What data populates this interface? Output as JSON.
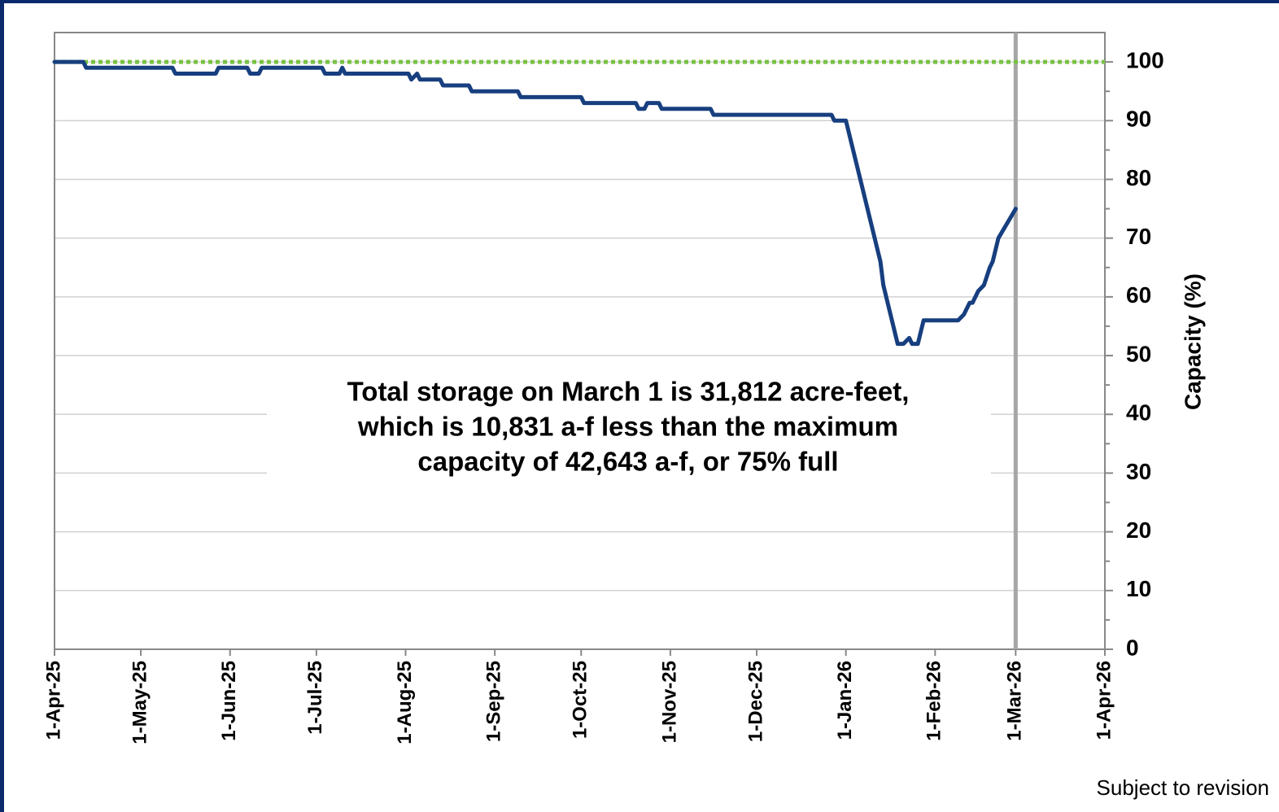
{
  "chart_data": {
    "type": "line",
    "y_label": "Capacity (%)",
    "annotation": [
      "Total storage on March 1 is 31,812 acre-feet,",
      "which is 10,831 a-f less than the maximum",
      "capacity of 42,643 a-f, or 75% full"
    ],
    "note": "Subject to revision",
    "xlim": [
      "2025-04-01",
      "2026-04-01"
    ],
    "xticks": [
      {
        "value": "2025-04-01",
        "label": "1-Apr-25"
      },
      {
        "value": "2025-05-01",
        "label": "1-May-25"
      },
      {
        "value": "2025-06-01",
        "label": "1-Jun-25"
      },
      {
        "value": "2025-07-01",
        "label": "1-Jul-25"
      },
      {
        "value": "2025-08-01",
        "label": "1-Aug-25"
      },
      {
        "value": "2025-09-01",
        "label": "1-Sep-25"
      },
      {
        "value": "2025-10-01",
        "label": "1-Oct-25"
      },
      {
        "value": "2025-11-01",
        "label": "1-Nov-25"
      },
      {
        "value": "2025-12-01",
        "label": "1-Dec-25"
      },
      {
        "value": "2026-01-01",
        "label": "1-Jan-26"
      },
      {
        "value": "2026-02-01",
        "label": "1-Feb-26"
      },
      {
        "value": "2026-03-01",
        "label": "1-Mar-26"
      },
      {
        "value": "2026-04-01",
        "label": "1-Apr-26"
      }
    ],
    "ylim": [
      0,
      105
    ],
    "yticks": [
      0,
      10,
      20,
      30,
      40,
      50,
      60,
      70,
      80,
      90,
      100
    ],
    "yminorticks": [
      5,
      15,
      25,
      35,
      45,
      55,
      65,
      75,
      85,
      95
    ],
    "y_axis_side": "right",
    "grid": true,
    "reference_line": {
      "value": 100,
      "color": "#7ac143"
    },
    "marker_date": "2026-03-01",
    "x": [
      "2025-04-01",
      "2025-04-11",
      "2025-04-12",
      "2025-05-12",
      "2025-05-13",
      "2025-05-27",
      "2025-05-28",
      "2025-06-07",
      "2025-06-08",
      "2025-06-11",
      "2025-06-12",
      "2025-07-03",
      "2025-07-04",
      "2025-07-09",
      "2025-07-10",
      "2025-07-11",
      "2025-08-02",
      "2025-08-03",
      "2025-08-05",
      "2025-08-06",
      "2025-08-13",
      "2025-08-14",
      "2025-08-23",
      "2025-08-24",
      "2025-09-09",
      "2025-09-10",
      "2025-10-01",
      "2025-10-02",
      "2025-10-20",
      "2025-10-21",
      "2025-10-23",
      "2025-10-24",
      "2025-10-28",
      "2025-10-29",
      "2025-11-15",
      "2025-11-16",
      "2025-12-27",
      "2025-12-28",
      "2026-01-01",
      "2026-01-06",
      "2026-01-13",
      "2026-01-14",
      "2026-01-19",
      "2026-01-21",
      "2026-01-23",
      "2026-01-24",
      "2026-01-26",
      "2026-01-28",
      "2026-02-09",
      "2026-02-11",
      "2026-02-13",
      "2026-02-14",
      "2026-02-16",
      "2026-02-18",
      "2026-02-20",
      "2026-02-21",
      "2026-02-23",
      "2026-03-01"
    ],
    "series": [
      {
        "color": "#173f7f",
        "values": [
          100,
          100,
          99,
          99,
          98,
          98,
          99,
          99,
          98,
          98,
          99,
          99,
          98,
          98,
          99,
          98,
          98,
          97,
          98,
          97,
          97,
          96,
          96,
          95,
          95,
          94,
          94,
          93,
          93,
          92,
          92,
          93,
          93,
          92,
          92,
          91,
          91,
          90,
          90,
          80,
          66,
          62,
          52,
          52,
          53,
          52,
          52,
          56,
          56,
          57,
          59,
          59,
          61,
          62,
          65,
          66,
          70,
          75
        ]
      }
    ]
  }
}
